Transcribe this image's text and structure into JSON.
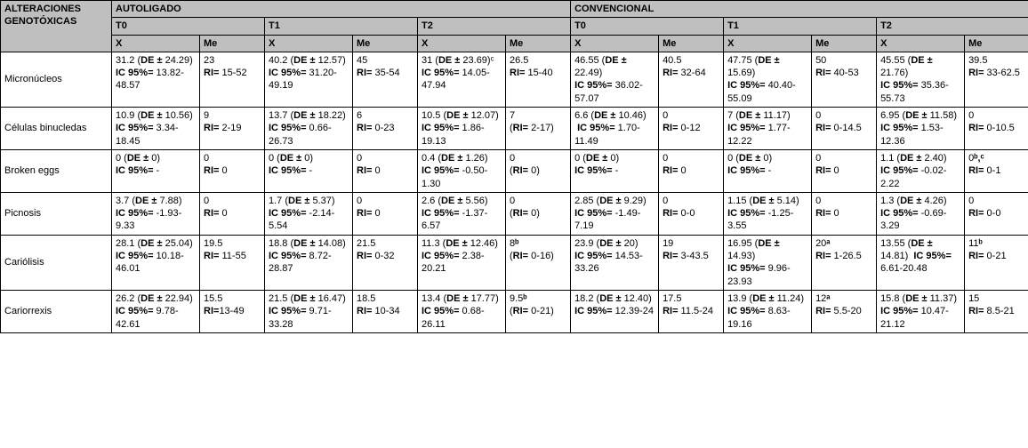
{
  "headers": {
    "corner": "ALTERACIONES GENOTÓXICAS",
    "group1": "AUTOLIGADO",
    "group2": "CONVENCIONAL",
    "t0": "T0",
    "t1": "T1",
    "t2": "T2",
    "x": "X",
    "me": "Me"
  },
  "rows": [
    {
      "label": "Micronúcleos",
      "cells": [
        "31.2 (<span class='b'>DE ±</span> 24.29)<br><span class='b'>IC 95%=</span> 13.82-48.57",
        "23<br><span class='b'>RI=</span> 15-52",
        "40.2 (<span class='b'>DE ±</span> 12.57)<br><span class='b'>IC 95%=</span> 31.20-49.19",
        "45<br><span class='b'>RI=</span> 35-54",
        "31 (<span class='b'>DE ±</span> 23.69)ᶜ<br><span class='b'>IC 95%=</span> 14.05-47.94",
        "26.5<br><span class='b'>RI=</span> 15-40",
        "46.55 (<span class='b'>DE ±</span> 22.49)<br><span class='b'>IC 95%=</span> 36.02-57.07",
        "40.5<br><span class='b'>RI=</span> 32-64",
        "47.75 (<span class='b'>DE ±</span> 15.69)<br><span class='b'>IC 95%=</span> 40.40-55.09",
        "50<br><span class='b'>RI=</span> 40-53",
        "45.55 (<span class='b'>DE ±</span> 21.76)<br><span class='b'>IC 95%=</span> 35.36-55.73",
        "39.5<br><span class='b'>RI=</span> 33-62.5"
      ]
    },
    {
      "label": "Células binucledas",
      "cells": [
        "10.9 (<span class='b'>DE ±</span> 10.56)<br><span class='b'>IC 95%=</span> 3.34-18.45",
        "9<br><span class='b'>RI=</span> 2-19",
        "13.7 (<span class='b'>DE ±</span> 18.22)<br><span class='b'>IC 95%=</span> 0.66-26.73",
        "6<br><span class='b'>RI=</span> 0-23",
        "10.5 (<span class='b'>DE ±</span> 12.07)<br><span class='b'>IC 95%=</span> 1.86-19.13",
        "7<br>(<span class='b'>RI=</span> 2-17)",
        "6.6 (<span class='b'>DE ±</span> 10.46)<br>&nbsp;<span class='b'>IC 95%=</span> 1.70-11.49",
        "0<br><span class='b'>RI=</span> 0-12",
        "7 (<span class='b'>DE ±</span> 11.17)<br><span class='b'>IC 95%=</span> 1.77-12.22",
        "0<br><span class='b'>RI=</span> 0-14.5",
        "6.95 (<span class='b'>DE ±</span> 11.58)<br><span class='b'>IC 95%=</span> 1.53-12.36",
        "0<br><span class='b'>RI=</span> 0-10.5"
      ]
    },
    {
      "label": "Broken eggs",
      "cells": [
        "0 (<span class='b'>DE ±</span> 0)<br><span class='b'>IC 95%=</span> -",
        "0<br><span class='b'>RI=</span> 0",
        "0 (<span class='b'>DE ±</span> 0)<br><span class='b'>IC 95%=</span> -",
        "0<br><span class='b'>RI=</span> 0",
        "0.4 (<span class='b'>DE ±</span> 1.26)<br><span class='b'>IC 95%=</span> -0.50-1.30",
        "0<br>(<span class='b'>RI=</span> 0)",
        "0 (<span class='b'>DE ±</span> 0)<br><span class='b'>IC 95%=</span> -",
        "0<br><span class='b'>RI=</span> 0",
        "0 (<span class='b'>DE ±</span> 0)<br><span class='b'>IC 95%=</span> -",
        "0<br><span class='b'>RI=</span> 0",
        "1.1 (<span class='b'>DE ±</span> 2.40)<br><span class='b'>IC 95%=</span> -0.02-2.22",
        "0<span class='b'>ᵇ,ᶜ</span><br><span class='b'>RI=</span> 0-1"
      ]
    },
    {
      "label": "Picnosis",
      "cells": [
        "3.7 (<span class='b'>DE ±</span> 7.88)<br><span class='b'>IC 95%=</span> -1.93-9.33",
        "0<br><span class='b'>RI=</span> 0",
        "1.7 (<span class='b'>DE ±</span> 5.37)<br><span class='b'>IC 95%=</span> -2.14-5.54",
        "0<br><span class='b'>RI=</span> 0",
        "2.6 (<span class='b'>DE ±</span> 5.56)<br><span class='b'>IC 95%=</span> -1.37-6.57",
        "0<br>(<span class='b'>RI=</span> 0)",
        "2.85 (<span class='b'>DE ±</span> 9.29)<br><span class='b'>IC 95%=</span> -1.49-7.19",
        "0<br><span class='b'>RI=</span> 0-0",
        "1.15 (<span class='b'>DE ±</span> 5.14)<br><span class='b'>IC 95%=</span> -1.25-3.55",
        "0<br><span class='b'>RI=</span> 0",
        "1.3 (<span class='b'>DE ±</span> 4.26)<br><span class='b'>IC 95%=</span> -0.69-3.29",
        "0<br><span class='b'>RI=</span> 0-0"
      ]
    },
    {
      "label": "Cariólisis",
      "cells": [
        "28.1 (<span class='b'>DE ±</span> 25.04)<br><span class='b'>IC 95%=</span> 10.18-46.01",
        "19.5<br><span class='b'>RI=</span> 11-55",
        "18.8 (<span class='b'>DE ±</span> 14.08)<br><span class='b'>IC 95%=</span> 8.72-28.87",
        "21.5<br><span class='b'>RI=</span> 0-32",
        "11.3 (<span class='b'>DE ±</span> 12.46)<br><span class='b'>IC 95%=</span> 2.38-20.21",
        "8<span class='b'>ᵇ</span><br>(<span class='b'>RI=</span> 0-16)",
        "23.9 (<span class='b'>DE ±</span> 20)<br><span class='b'>IC 95%=</span> 14.53-33.26",
        "19<br><span class='b'>RI=</span> 3-43.5",
        "16.95 (<span class='b'>DE ±</span> 14.93)<br><span class='b'>IC 95%=</span> 9.96-23.93",
        "20<span class='b'>ᵃ</span><br><span class='b'>RI=</span> 1-26.5",
        "13.55 (<span class='b'>DE ±</span> 14.81)&nbsp;&nbsp;<span class='b'>IC 95%=</span> 6.61-20.48",
        "11<span class='b'>ᵇ</span><br><span class='b'>RI=</span> 0-21"
      ]
    },
    {
      "label": "Cariorrexis",
      "cells": [
        "26.2 (<span class='b'>DE ±</span> 22.94)<br><span class='b'>IC 95%=</span> 9.78-42.61",
        "15.5<br><span class='b'>RI=</span>13-49",
        "21.5 (<span class='b'>DE ±</span> 16.47)<br><span class='b'>IC 95%=</span> 9.71-33.28",
        "18.5<br><span class='b'>RI=</span> 10-34",
        "13.4 (<span class='b'>DE ±</span> 17.77)<br><span class='b'>IC 95%=</span> 0.68-26.11",
        "9.5<span class='b'>ᵇ</span><br>(<span class='b'>RI=</span> 0-21)",
        "18.2 (<span class='b'>DE ±</span> 12.40)<br><span class='b'>IC 95%=</span> 12.39-24",
        "17.5<br><span class='b'>RI=</span> 11.5-24",
        "13.9 (<span class='b'>DE ±</span> 11.24)<br><span class='b'>IC 95%=</span> 8.63-19.16",
        "12<span class='b'>ᵃ</span><br><span class='b'>RI=</span> 5.5-20",
        "15.8 (<span class='b'>DE ±</span> 11.37)<br><span class='b'>IC 95%=</span> 10.47-21.12",
        "15<br><span class='b'>RI=</span> 8.5-21"
      ]
    }
  ]
}
